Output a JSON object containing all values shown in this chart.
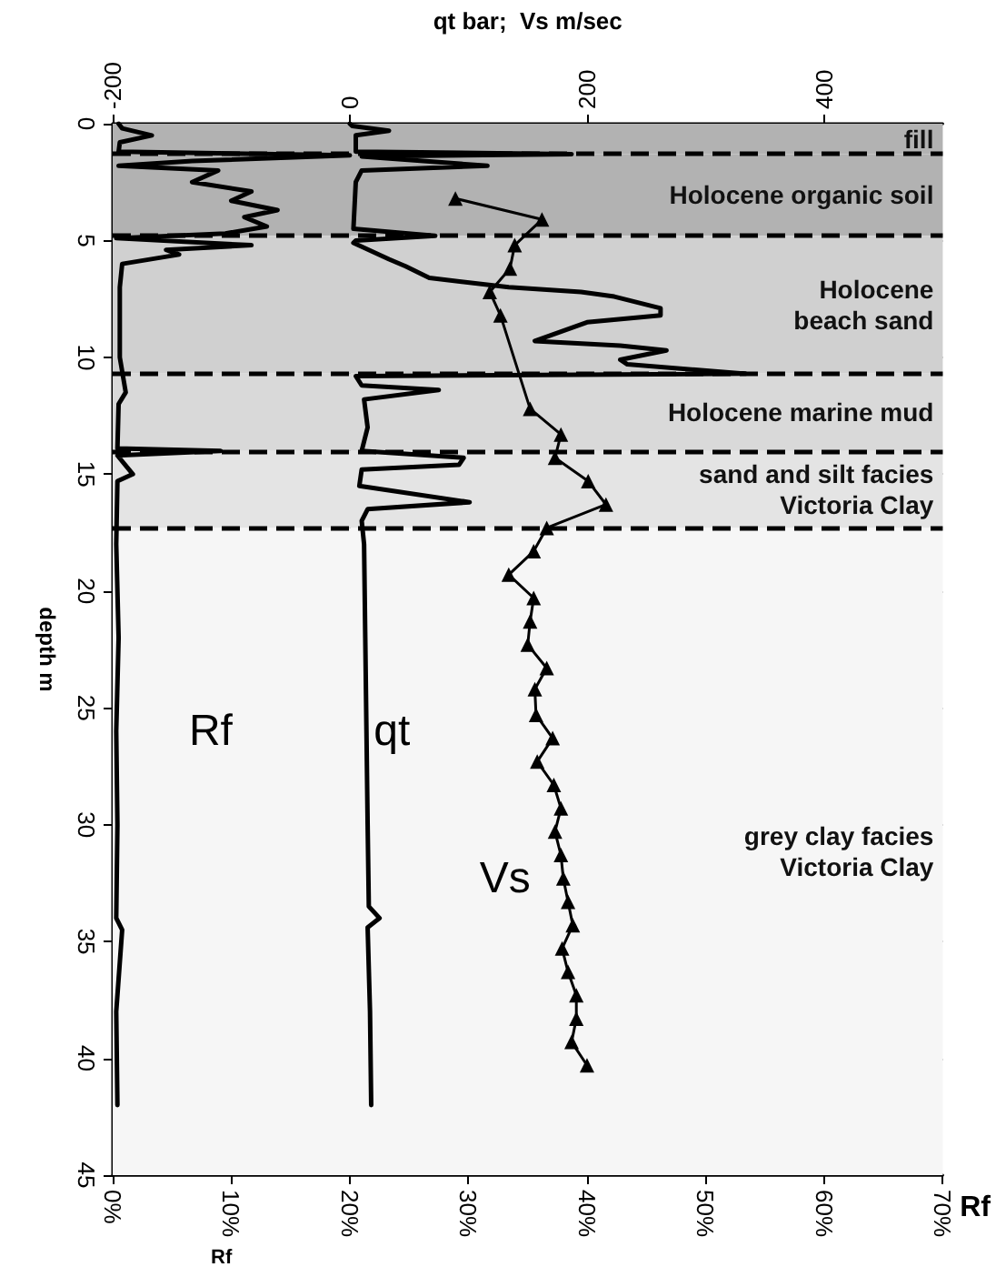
{
  "chart_data": {
    "type": "line",
    "xlabel": "Rf",
    "x2label": "qt bar;  Vs m/sec",
    "ylabel": "depth m",
    "xlim": [
      0,
      70
    ],
    "xticks": [
      {
        "value": 0,
        "label": "0%"
      },
      {
        "value": 10,
        "label": "10%"
      },
      {
        "value": 20,
        "label": "20%"
      },
      {
        "value": 30,
        "label": "30%"
      },
      {
        "value": 40,
        "label": "40%"
      },
      {
        "value": 50,
        "label": "50%"
      },
      {
        "value": 60,
        "label": "60%"
      },
      {
        "value": 70,
        "label": "70%"
      }
    ],
    "x2lim": [
      -200,
      500
    ],
    "x2ticks": [
      -200,
      0,
      200,
      400
    ],
    "ylim": [
      45,
      0
    ],
    "yticks": [
      0,
      5,
      10,
      15,
      20,
      25,
      30,
      35,
      40,
      45
    ],
    "grid": true,
    "line_style": "solid",
    "series": [
      {
        "name": "Rf",
        "color": "#000000",
        "marker": "none",
        "x": [
          0.5,
          0.8,
          3.3,
          0.6,
          0.5,
          20,
          6.7,
          0.5,
          8.9,
          6.7,
          11.7,
          10,
          13.9,
          11.1,
          13,
          9.5,
          0.3,
          11.7,
          4.5,
          5.6,
          0.8,
          0.6,
          0.6,
          1.1,
          0.5,
          0.4,
          9.1,
          0.4,
          1.7,
          0.4,
          0.3,
          0.5,
          0.3,
          0.4,
          0.3,
          0.8,
          0.3,
          0.4
        ],
        "values": [
          0,
          0.2,
          0.5,
          0.8,
          1.2,
          1.35,
          1.6,
          1.8,
          2.0,
          2.5,
          2.9,
          3.3,
          3.7,
          4.0,
          4.4,
          4.7,
          4.9,
          5.2,
          5.4,
          5.6,
          6.0,
          7.0,
          10.0,
          11.5,
          12.0,
          13.9,
          14.0,
          14.2,
          15.0,
          15.3,
          18,
          22,
          26,
          30,
          34,
          34.5,
          38,
          42
        ]
      },
      {
        "name": "qt",
        "color": "#000000",
        "marker": "none",
        "axis": "x2",
        "x": [
          0,
          2,
          33,
          5,
          5,
          187,
          10,
          116,
          10,
          5,
          3,
          72,
          5,
          3,
          33,
          47,
          67,
          134,
          195,
          223,
          262,
          262,
          200,
          156,
          228,
          267,
          228,
          234,
          334,
          5,
          10,
          75,
          12,
          15,
          10,
          96,
          92,
          10,
          8,
          101,
          15,
          10,
          12,
          13,
          14,
          15,
          16,
          25,
          15,
          17,
          18
        ],
        "values": [
          0,
          0.1,
          0.3,
          0.5,
          1.2,
          1.3,
          1.4,
          1.8,
          2.0,
          2.5,
          4.5,
          4.8,
          5.0,
          5.1,
          5.8,
          6.1,
          6.6,
          7.0,
          7.2,
          7.4,
          7.9,
          8.2,
          8.5,
          9.3,
          9.5,
          9.7,
          10.1,
          10.3,
          10.7,
          10.8,
          11.2,
          11.4,
          11.8,
          13.0,
          14.0,
          14.3,
          14.6,
          14.8,
          15.5,
          16.2,
          16.5,
          17.0,
          18,
          22,
          26,
          30,
          33.5,
          34.0,
          34.4,
          38,
          42
        ]
      },
      {
        "name": "Vs",
        "color": "#000000",
        "marker": "triangle",
        "axis": "x2",
        "x": [
          89,
          162,
          139,
          135,
          118,
          127,
          152,
          178,
          173,
          201,
          216,
          166,
          155,
          134,
          155,
          152,
          150,
          166,
          156,
          157,
          171,
          158,
          172,
          178,
          173,
          178,
          180,
          184,
          188,
          179,
          184,
          191,
          191,
          187,
          200
        ],
        "values": [
          3.2,
          4.1,
          5.2,
          6.2,
          7.2,
          8.2,
          12.2,
          13.3,
          14.3,
          15.3,
          16.3,
          17.3,
          18.3,
          19.3,
          20.3,
          21.3,
          22.3,
          23.3,
          24.2,
          25.3,
          26.3,
          27.3,
          28.3,
          29.3,
          30.3,
          31.3,
          32.3,
          33.3,
          34.3,
          35.3,
          36.3,
          37.3,
          38.3,
          39.3,
          40.3
        ]
      }
    ],
    "bands": [
      {
        "axis": "y",
        "from": 0,
        "to": 1.3,
        "label": "fill",
        "color": "#b2b2b2"
      },
      {
        "axis": "y",
        "from": 1.3,
        "to": 4.8,
        "label": "Holocene organic soil",
        "color": "#b2b2b2"
      },
      {
        "axis": "y",
        "from": 4.8,
        "to": 10.7,
        "label": "Holocene\nbeach sand",
        "color": "#d0d0d0"
      },
      {
        "axis": "y",
        "from": 10.7,
        "to": 14.0,
        "label": "Holocene marine mud",
        "color": "#d9d9d9"
      },
      {
        "axis": "y",
        "from": 14.0,
        "to": 17.3,
        "label": "sand and silt facies\nVictoria Clay",
        "color": "#e4e4e4"
      },
      {
        "axis": "y",
        "from": 17.3,
        "to": 45,
        "label": "grey clay facies\nVictoria Clay",
        "color": "#f6f6f6"
      }
    ],
    "ref_lines": [
      {
        "axis": "y",
        "value": 1.3,
        "color": "#000000",
        "line_style": "dashed"
      },
      {
        "axis": "y",
        "value": 4.8,
        "color": "#000000",
        "line_style": "dashed"
      },
      {
        "axis": "y",
        "value": 10.7,
        "color": "#000000",
        "line_style": "dashed"
      },
      {
        "axis": "y",
        "value": 14.0,
        "color": "#000000",
        "line_style": "dashed"
      },
      {
        "axis": "y",
        "value": 17.3,
        "color": "#000000",
        "line_style": "dashed"
      }
    ],
    "annotations": [
      "Rf"
    ]
  }
}
